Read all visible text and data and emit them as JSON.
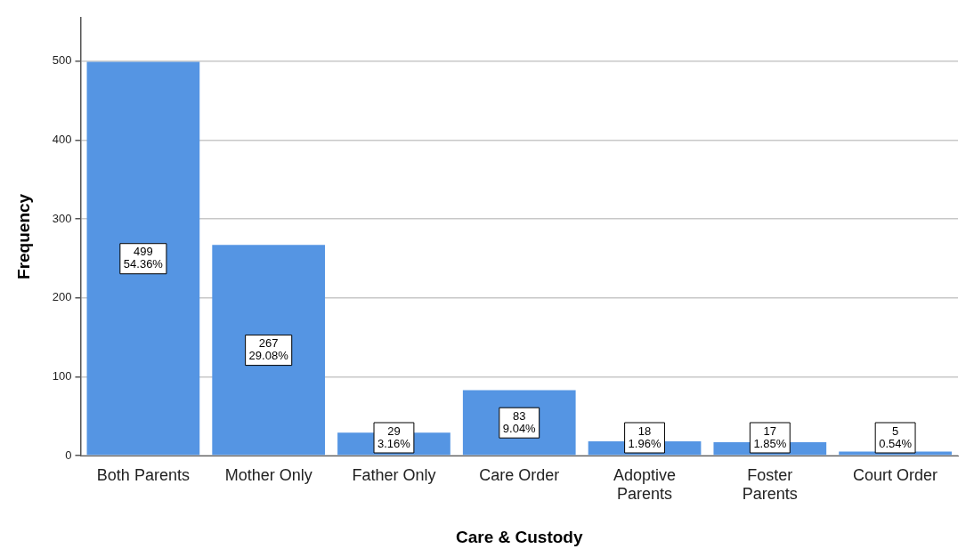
{
  "chart_data": {
    "type": "bar",
    "xlabel": "Care & Custody",
    "ylabel": "Frequency",
    "categories": [
      "Both Parents",
      "Mother Only",
      "Father Only",
      "Care Order",
      "Adoptive Parents",
      "Foster Parents",
      "Court Order"
    ],
    "values": [
      499,
      267,
      29,
      83,
      18,
      17,
      5
    ],
    "value_labels": [
      "499\n54.36%",
      "267\n29.08%",
      "29\n3.16%",
      "83\n9.04%",
      "18\n1.96%",
      "17\n1.85%",
      "5\n0.54%"
    ],
    "color": "#5595e3",
    "ylim": [
      0,
      555
    ],
    "yticks": [
      0,
      100,
      200,
      300,
      400,
      500
    ],
    "grid": "y",
    "legend": false
  }
}
